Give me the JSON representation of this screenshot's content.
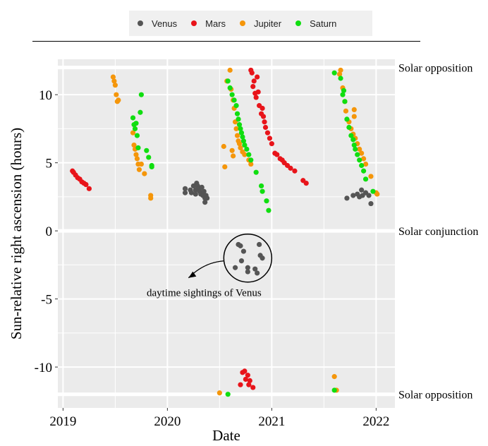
{
  "chart_data": {
    "type": "scatter",
    "xlabel": "Date",
    "ylabel": "Sun-relative right ascension (hours)",
    "xlim": [
      2018.95,
      2022.18
    ],
    "ylim": [
      -13,
      12.6
    ],
    "x_ticks": [
      2019,
      2020,
      2021,
      2022
    ],
    "x_tick_labels": [
      "2019",
      "2020",
      "2021",
      "2022"
    ],
    "y_ticks": [
      10,
      5,
      0,
      -5,
      -10
    ],
    "y_tick_labels": [
      "10",
      "5",
      "0",
      "-5",
      "-10"
    ],
    "grid": true,
    "legend_position": "top",
    "reference_lines": [
      {
        "y": 12,
        "label": "Solar opposition"
      },
      {
        "y": 0,
        "label": "Solar conjunction"
      },
      {
        "y": -12,
        "label": "Solar opposition"
      }
    ],
    "annotation": {
      "text": "daytime sightings of Venus",
      "center": [
        2020.77,
        -2.0
      ]
    },
    "series": [
      {
        "name": "Venus",
        "color": "#555555",
        "points": [
          [
            2020.17,
            3.1
          ],
          [
            2020.17,
            2.8
          ],
          [
            2020.22,
            3.0
          ],
          [
            2020.23,
            2.8
          ],
          [
            2020.25,
            3.3
          ],
          [
            2020.27,
            3.0
          ],
          [
            2020.27,
            2.7
          ],
          [
            2020.28,
            3.5
          ],
          [
            2020.29,
            3.3
          ],
          [
            2020.3,
            3.1
          ],
          [
            2020.31,
            2.9
          ],
          [
            2020.32,
            2.7
          ],
          [
            2020.33,
            3.2
          ],
          [
            2020.34,
            2.6
          ],
          [
            2020.35,
            2.9
          ],
          [
            2020.36,
            2.4
          ],
          [
            2020.36,
            2.1
          ],
          [
            2020.37,
            2.6
          ],
          [
            2020.38,
            2.4
          ],
          [
            2020.65,
            -2.7
          ],
          [
            2020.68,
            -1.0
          ],
          [
            2020.7,
            -1.1
          ],
          [
            2020.71,
            -2.2
          ],
          [
            2020.73,
            -1.5
          ],
          [
            2020.77,
            -2.7
          ],
          [
            2020.77,
            -3.0
          ],
          [
            2020.84,
            -2.8
          ],
          [
            2020.86,
            -3.1
          ],
          [
            2020.88,
            -1.0
          ],
          [
            2020.89,
            -1.8
          ],
          [
            2020.91,
            -2.0
          ],
          [
            2021.72,
            2.4
          ],
          [
            2021.78,
            2.6
          ],
          [
            2021.82,
            2.7
          ],
          [
            2021.84,
            2.5
          ],
          [
            2021.86,
            3.0
          ],
          [
            2021.87,
            2.6
          ],
          [
            2021.9,
            2.8
          ],
          [
            2021.93,
            2.6
          ],
          [
            2021.95,
            2.0
          ]
        ]
      },
      {
        "name": "Mars",
        "color": "#e8141a",
        "points": [
          [
            2019.09,
            4.4
          ],
          [
            2019.1,
            4.3
          ],
          [
            2019.12,
            4.1
          ],
          [
            2019.14,
            3.9
          ],
          [
            2019.16,
            3.8
          ],
          [
            2019.18,
            3.6
          ],
          [
            2019.2,
            3.5
          ],
          [
            2019.22,
            3.4
          ],
          [
            2019.25,
            3.1
          ],
          [
            2020.7,
            -11.3
          ],
          [
            2020.72,
            -10.4
          ],
          [
            2020.74,
            -10.3
          ],
          [
            2020.75,
            -10.9
          ],
          [
            2020.77,
            -10.6
          ],
          [
            2020.78,
            -11.3
          ],
          [
            2020.79,
            -11.0
          ],
          [
            2020.82,
            -11.5
          ],
          [
            2020.8,
            11.8
          ],
          [
            2020.81,
            11.6
          ],
          [
            2020.82,
            10.6
          ],
          [
            2020.83,
            11.0
          ],
          [
            2020.84,
            10.1
          ],
          [
            2020.85,
            9.8
          ],
          [
            2020.86,
            11.3
          ],
          [
            2020.87,
            10.2
          ],
          [
            2020.88,
            9.2
          ],
          [
            2020.9,
            8.6
          ],
          [
            2020.91,
            9.0
          ],
          [
            2020.92,
            8.4
          ],
          [
            2020.93,
            8.0
          ],
          [
            2020.94,
            7.6
          ],
          [
            2020.96,
            7.2
          ],
          [
            2020.98,
            6.8
          ],
          [
            2021.0,
            6.4
          ],
          [
            2021.03,
            5.7
          ],
          [
            2021.05,
            5.6
          ],
          [
            2021.08,
            5.3
          ],
          [
            2021.1,
            5.2
          ],
          [
            2021.12,
            5.0
          ],
          [
            2021.15,
            4.8
          ],
          [
            2021.18,
            4.6
          ],
          [
            2021.22,
            4.4
          ],
          [
            2021.3,
            3.7
          ],
          [
            2021.33,
            3.5
          ]
        ]
      },
      {
        "name": "Jupiter",
        "color": "#f5960a",
        "points": [
          [
            2019.48,
            11.3
          ],
          [
            2019.49,
            11.0
          ],
          [
            2019.5,
            10.7
          ],
          [
            2019.51,
            10.0
          ],
          [
            2019.52,
            9.5
          ],
          [
            2019.53,
            9.6
          ],
          [
            2019.67,
            7.2
          ],
          [
            2019.68,
            6.3
          ],
          [
            2019.69,
            6.0
          ],
          [
            2019.7,
            5.6
          ],
          [
            2019.71,
            5.3
          ],
          [
            2019.72,
            4.9
          ],
          [
            2019.73,
            4.5
          ],
          [
            2019.75,
            4.9
          ],
          [
            2019.78,
            4.2
          ],
          [
            2019.84,
            2.6
          ],
          [
            2019.84,
            2.4
          ],
          [
            2020.54,
            6.2
          ],
          [
            2020.55,
            4.7
          ],
          [
            2020.57,
            11.0
          ],
          [
            2020.6,
            11.8
          ],
          [
            2020.61,
            10.4
          ],
          [
            2020.62,
            5.9
          ],
          [
            2020.63,
            5.5
          ],
          [
            2020.63,
            9.6
          ],
          [
            2020.64,
            9.0
          ],
          [
            2020.65,
            8.0
          ],
          [
            2020.66,
            7.5
          ],
          [
            2020.67,
            7.0
          ],
          [
            2020.68,
            6.6
          ],
          [
            2020.69,
            6.4
          ],
          [
            2020.7,
            6.1
          ],
          [
            2020.72,
            5.8
          ],
          [
            2020.74,
            5.6
          ],
          [
            2020.78,
            5.2
          ],
          [
            2020.8,
            4.9
          ],
          [
            2020.5,
            -11.9
          ],
          [
            2021.65,
            11.5
          ],
          [
            2021.66,
            11.8
          ],
          [
            2021.68,
            10.5
          ],
          [
            2021.7,
            9.5
          ],
          [
            2021.71,
            8.8
          ],
          [
            2021.74,
            8.0
          ],
          [
            2021.76,
            7.5
          ],
          [
            2021.78,
            7.1
          ],
          [
            2021.79,
            8.9
          ],
          [
            2021.79,
            8.4
          ],
          [
            2021.8,
            6.8
          ],
          [
            2021.82,
            6.4
          ],
          [
            2021.84,
            6.0
          ],
          [
            2021.86,
            5.7
          ],
          [
            2021.88,
            5.3
          ],
          [
            2021.9,
            4.9
          ],
          [
            2021.95,
            4.0
          ],
          [
            2022.0,
            2.8
          ],
          [
            2022.01,
            2.7
          ],
          [
            2021.6,
            -10.7
          ],
          [
            2021.62,
            -11.7
          ]
        ]
      },
      {
        "name": "Saturn",
        "color": "#10de10",
        "points": [
          [
            2019.67,
            8.3
          ],
          [
            2019.68,
            7.8
          ],
          [
            2019.69,
            7.5
          ],
          [
            2019.7,
            7.9
          ],
          [
            2019.71,
            7.0
          ],
          [
            2019.72,
            6.1
          ],
          [
            2019.74,
            8.7
          ],
          [
            2019.75,
            10.0
          ],
          [
            2019.8,
            5.9
          ],
          [
            2019.82,
            5.4
          ],
          [
            2019.85,
            4.8
          ],
          [
            2019.85,
            4.7
          ],
          [
            2020.58,
            11.0
          ],
          [
            2020.6,
            10.5
          ],
          [
            2020.62,
            10.0
          ],
          [
            2020.64,
            9.6
          ],
          [
            2020.66,
            9.2
          ],
          [
            2020.67,
            8.6
          ],
          [
            2020.68,
            8.2
          ],
          [
            2020.69,
            7.8
          ],
          [
            2020.7,
            7.5
          ],
          [
            2020.71,
            7.2
          ],
          [
            2020.72,
            6.9
          ],
          [
            2020.73,
            6.6
          ],
          [
            2020.74,
            6.3
          ],
          [
            2020.76,
            6.0
          ],
          [
            2020.78,
            5.6
          ],
          [
            2020.8,
            5.2
          ],
          [
            2020.85,
            4.3
          ],
          [
            2020.9,
            3.3
          ],
          [
            2020.91,
            2.9
          ],
          [
            2020.95,
            2.2
          ],
          [
            2020.97,
            1.5
          ],
          [
            2020.58,
            -12.0
          ],
          [
            2021.6,
            11.6
          ],
          [
            2021.66,
            11.2
          ],
          [
            2021.68,
            10.0
          ],
          [
            2021.69,
            10.3
          ],
          [
            2021.7,
            9.5
          ],
          [
            2021.72,
            8.2
          ],
          [
            2021.74,
            7.6
          ],
          [
            2021.76,
            7.0
          ],
          [
            2021.78,
            6.7
          ],
          [
            2021.79,
            6.3
          ],
          [
            2021.8,
            6.0
          ],
          [
            2021.82,
            5.6
          ],
          [
            2021.84,
            5.2
          ],
          [
            2021.86,
            4.8
          ],
          [
            2021.88,
            4.4
          ],
          [
            2021.9,
            3.8
          ],
          [
            2021.97,
            2.9
          ],
          [
            2021.6,
            -11.7
          ]
        ]
      }
    ]
  }
}
